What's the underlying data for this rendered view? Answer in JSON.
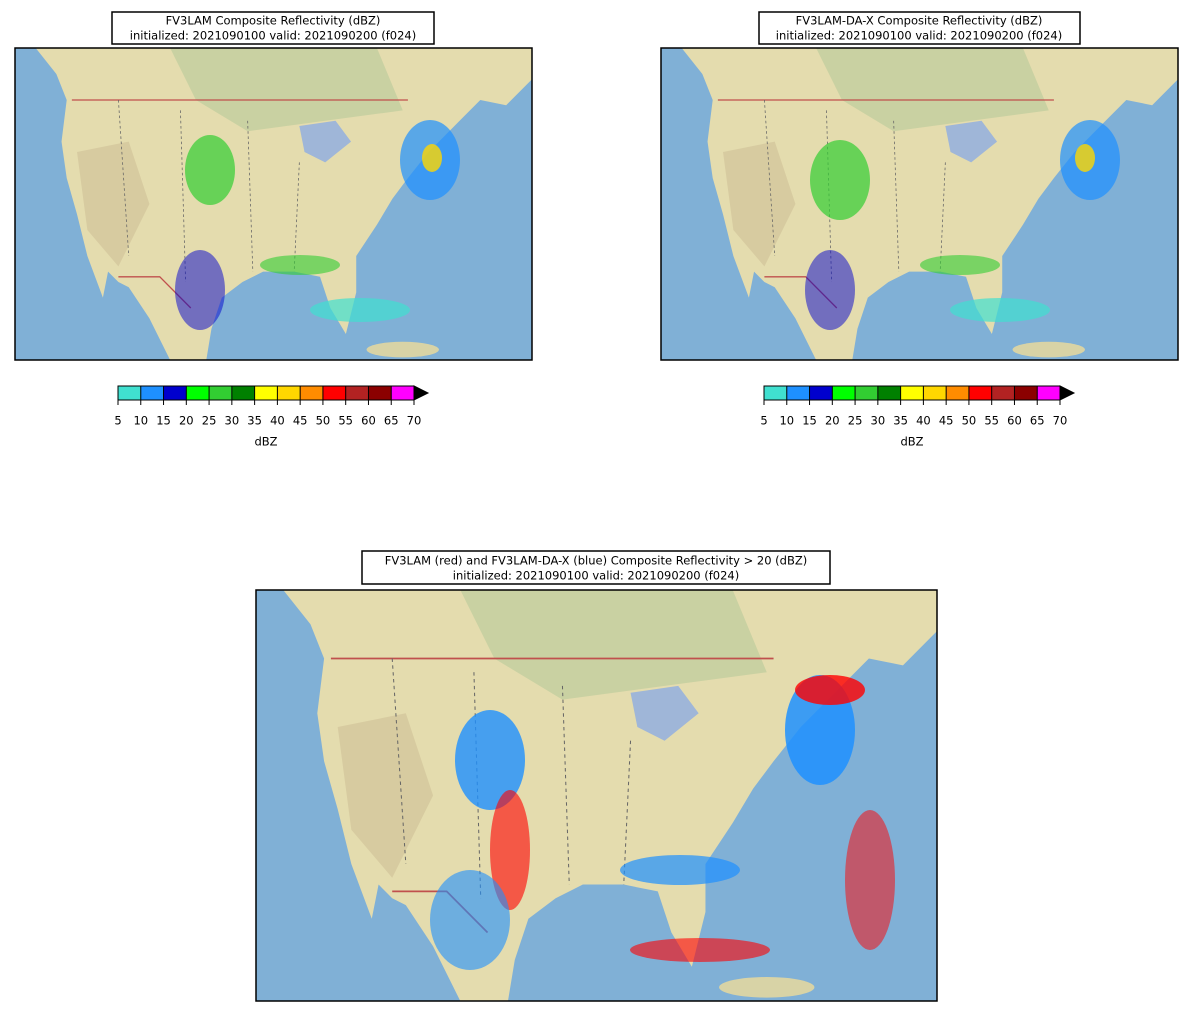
{
  "panels": [
    {
      "title": "FV3LAM Composite Reflectivity (dBZ)",
      "subtitle": "initialized: 2021090100 valid: 2021090200 (f024)",
      "colorbar": {
        "ticks": [
          5,
          10,
          15,
          20,
          25,
          30,
          35,
          40,
          45,
          50,
          55,
          60,
          65,
          70
        ],
        "colors": [
          "#40e0d0",
          "#1e90ff",
          "#0000cd",
          "#00ff00",
          "#32cd32",
          "#008000",
          "#ffff00",
          "#ffd700",
          "#ff8c00",
          "#ff0000",
          "#b22222",
          "#8b0000",
          "#ff00ff"
        ],
        "extend_color": "#000000",
        "label": "dBZ"
      }
    },
    {
      "title": "FV3LAM-DA-X Composite Reflectivity (dBZ)",
      "subtitle": "initialized: 2021090100 valid: 2021090200 (f024)",
      "colorbar": {
        "ticks": [
          5,
          10,
          15,
          20,
          25,
          30,
          35,
          40,
          45,
          50,
          55,
          60,
          65,
          70
        ],
        "colors": [
          "#40e0d0",
          "#1e90ff",
          "#0000cd",
          "#00ff00",
          "#32cd32",
          "#008000",
          "#ffff00",
          "#ffd700",
          "#ff8c00",
          "#ff0000",
          "#b22222",
          "#8b0000",
          "#ff00ff"
        ],
        "extend_color": "#000000",
        "label": "dBZ"
      }
    },
    {
      "title": "FV3LAM (red) and FV3LAM-DA-X (blue) Composite Reflectivity > 20 (dBZ)",
      "subtitle": "initialized: 2021090100 valid: 2021090200 (f024)"
    }
  ]
}
